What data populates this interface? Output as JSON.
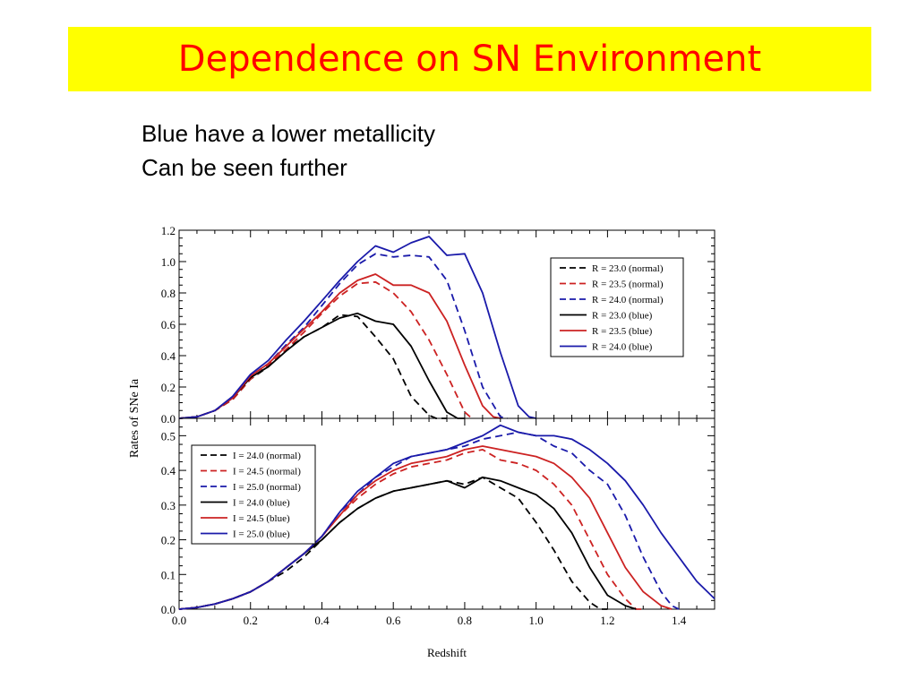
{
  "slide": {
    "title": "Dependence on SN Environment",
    "bullets": [
      "Blue have a lower metallicity",
      "Can be seen further"
    ]
  },
  "colors": {
    "title_bg": "#ffff00",
    "title_text": "#ff0000",
    "series_black": "#000000",
    "series_red": "#cc2222",
    "series_blue": "#1a1aaa"
  },
  "chart_data": [
    {
      "type": "line",
      "panel": "top",
      "xlabel": "",
      "ylabel": "Rates of SNe Ia",
      "xlim": [
        0.0,
        1.5
      ],
      "ylim": [
        0.0,
        1.2
      ],
      "yticks": [
        "0.0",
        "0.2",
        "0.4",
        "0.6",
        "0.8",
        "1.0",
        "1.2"
      ],
      "legend_position": "top-right",
      "series": [
        {
          "name": "R = 23.0 (normal)",
          "color": "#000000",
          "dash": true,
          "x": [
            0,
            0.05,
            0.1,
            0.15,
            0.2,
            0.25,
            0.3,
            0.35,
            0.4,
            0.45,
            0.5,
            0.55,
            0.6,
            0.65,
            0.7,
            0.72,
            0.75
          ],
          "y": [
            0,
            0.01,
            0.05,
            0.12,
            0.25,
            0.33,
            0.44,
            0.52,
            0.58,
            0.66,
            0.65,
            0.52,
            0.38,
            0.14,
            0.02,
            0,
            0
          ]
        },
        {
          "name": "R = 23.5 (normal)",
          "color": "#cc2222",
          "dash": true,
          "x": [
            0,
            0.05,
            0.1,
            0.15,
            0.2,
            0.25,
            0.3,
            0.35,
            0.4,
            0.45,
            0.5,
            0.55,
            0.6,
            0.65,
            0.7,
            0.75,
            0.8,
            0.82
          ],
          "y": [
            0,
            0.01,
            0.05,
            0.12,
            0.25,
            0.34,
            0.44,
            0.55,
            0.67,
            0.78,
            0.86,
            0.87,
            0.8,
            0.68,
            0.5,
            0.28,
            0.04,
            0
          ]
        },
        {
          "name": "R = 24.0 (normal)",
          "color": "#1a1aaa",
          "dash": true,
          "x": [
            0,
            0.05,
            0.1,
            0.15,
            0.2,
            0.25,
            0.3,
            0.35,
            0.4,
            0.45,
            0.5,
            0.55,
            0.6,
            0.65,
            0.7,
            0.75,
            0.8,
            0.85,
            0.9,
            0.92
          ],
          "y": [
            0,
            0.01,
            0.05,
            0.13,
            0.27,
            0.35,
            0.47,
            0.58,
            0.72,
            0.86,
            0.98,
            1.05,
            1.03,
            1.04,
            1.03,
            0.88,
            0.56,
            0.2,
            0.01,
            0
          ]
        },
        {
          "name": "R = 23.0 (blue)",
          "color": "#000000",
          "dash": false,
          "x": [
            0,
            0.05,
            0.1,
            0.15,
            0.2,
            0.25,
            0.3,
            0.35,
            0.4,
            0.45,
            0.5,
            0.55,
            0.6,
            0.65,
            0.7,
            0.75,
            0.78,
            0.8
          ],
          "y": [
            0,
            0.01,
            0.05,
            0.13,
            0.26,
            0.33,
            0.43,
            0.52,
            0.58,
            0.64,
            0.67,
            0.62,
            0.6,
            0.46,
            0.24,
            0.04,
            0,
            0
          ]
        },
        {
          "name": "R = 23.5 (blue)",
          "color": "#cc2222",
          "dash": false,
          "x": [
            0,
            0.05,
            0.1,
            0.15,
            0.2,
            0.25,
            0.3,
            0.35,
            0.4,
            0.45,
            0.5,
            0.55,
            0.6,
            0.65,
            0.7,
            0.75,
            0.8,
            0.85,
            0.88,
            0.9
          ],
          "y": [
            0,
            0.01,
            0.05,
            0.13,
            0.27,
            0.35,
            0.46,
            0.57,
            0.68,
            0.8,
            0.88,
            0.92,
            0.85,
            0.85,
            0.8,
            0.62,
            0.34,
            0.08,
            0.01,
            0
          ]
        },
        {
          "name": "R = 24.0 (blue)",
          "color": "#1a1aaa",
          "dash": false,
          "x": [
            0,
            0.05,
            0.1,
            0.15,
            0.2,
            0.25,
            0.3,
            0.35,
            0.4,
            0.45,
            0.5,
            0.55,
            0.6,
            0.65,
            0.7,
            0.75,
            0.8,
            0.85,
            0.9,
            0.95,
            0.98,
            1.0
          ],
          "y": [
            0,
            0.01,
            0.05,
            0.14,
            0.28,
            0.37,
            0.5,
            0.62,
            0.75,
            0.88,
            1.0,
            1.1,
            1.06,
            1.12,
            1.16,
            1.04,
            1.05,
            0.8,
            0.42,
            0.08,
            0.01,
            0
          ]
        }
      ]
    },
    {
      "type": "line",
      "panel": "bottom",
      "xlabel": "Redshift",
      "ylabel": "Rates of SNe Ia",
      "xlim": [
        0.0,
        1.5
      ],
      "ylim": [
        0.0,
        0.55
      ],
      "xticks": [
        "0.0",
        "0.2",
        "0.4",
        "0.6",
        "0.8",
        "1.0",
        "1.2",
        "1.4"
      ],
      "yticks": [
        "0.0",
        "0.1",
        "0.2",
        "0.3",
        "0.4",
        "0.5"
      ],
      "legend_position": "top-left",
      "series": [
        {
          "name": "I = 24.0 (normal)",
          "color": "#000000",
          "dash": true,
          "x": [
            0,
            0.05,
            0.1,
            0.15,
            0.2,
            0.25,
            0.3,
            0.35,
            0.4,
            0.45,
            0.5,
            0.55,
            0.6,
            0.65,
            0.7,
            0.75,
            0.8,
            0.85,
            0.9,
            0.95,
            1.0,
            1.05,
            1.1,
            1.15,
            1.18,
            1.2
          ],
          "y": [
            0,
            0.005,
            0.015,
            0.03,
            0.05,
            0.08,
            0.11,
            0.15,
            0.2,
            0.25,
            0.29,
            0.32,
            0.34,
            0.35,
            0.36,
            0.37,
            0.36,
            0.38,
            0.35,
            0.32,
            0.25,
            0.17,
            0.08,
            0.02,
            0,
            0
          ]
        },
        {
          "name": "I = 24.5 (normal)",
          "color": "#cc2222",
          "dash": true,
          "x": [
            0,
            0.05,
            0.1,
            0.15,
            0.2,
            0.25,
            0.3,
            0.35,
            0.4,
            0.45,
            0.5,
            0.55,
            0.6,
            0.65,
            0.7,
            0.75,
            0.8,
            0.85,
            0.9,
            0.95,
            1.0,
            1.05,
            1.1,
            1.15,
            1.2,
            1.25,
            1.28,
            1.3
          ],
          "y": [
            0,
            0.005,
            0.015,
            0.03,
            0.05,
            0.08,
            0.12,
            0.16,
            0.21,
            0.27,
            0.32,
            0.36,
            0.39,
            0.41,
            0.42,
            0.43,
            0.45,
            0.46,
            0.43,
            0.42,
            0.4,
            0.36,
            0.3,
            0.2,
            0.1,
            0.03,
            0,
            0
          ]
        },
        {
          "name": "I = 25.0 (normal)",
          "color": "#1a1aaa",
          "dash": true,
          "x": [
            0,
            0.05,
            0.1,
            0.15,
            0.2,
            0.25,
            0.3,
            0.35,
            0.4,
            0.45,
            0.5,
            0.55,
            0.6,
            0.65,
            0.7,
            0.75,
            0.8,
            0.85,
            0.9,
            0.95,
            1.0,
            1.05,
            1.1,
            1.15,
            1.2,
            1.25,
            1.3,
            1.35,
            1.38,
            1.4
          ],
          "y": [
            0,
            0.005,
            0.015,
            0.03,
            0.05,
            0.08,
            0.12,
            0.16,
            0.21,
            0.28,
            0.33,
            0.38,
            0.41,
            0.44,
            0.45,
            0.46,
            0.47,
            0.49,
            0.5,
            0.51,
            0.5,
            0.47,
            0.45,
            0.4,
            0.36,
            0.27,
            0.15,
            0.05,
            0.01,
            0
          ]
        },
        {
          "name": "I = 24.0 (blue)",
          "color": "#000000",
          "dash": false,
          "x": [
            0,
            0.05,
            0.1,
            0.15,
            0.2,
            0.25,
            0.3,
            0.35,
            0.4,
            0.45,
            0.5,
            0.55,
            0.6,
            0.65,
            0.7,
            0.75,
            0.8,
            0.85,
            0.9,
            0.95,
            1.0,
            1.05,
            1.1,
            1.15,
            1.2,
            1.25,
            1.28
          ],
          "y": [
            0,
            0.005,
            0.015,
            0.03,
            0.05,
            0.08,
            0.12,
            0.16,
            0.2,
            0.25,
            0.29,
            0.32,
            0.34,
            0.35,
            0.36,
            0.37,
            0.35,
            0.38,
            0.37,
            0.35,
            0.33,
            0.29,
            0.22,
            0.12,
            0.04,
            0.01,
            0
          ]
        },
        {
          "name": "I = 24.5 (blue)",
          "color": "#cc2222",
          "dash": false,
          "x": [
            0,
            0.05,
            0.1,
            0.15,
            0.2,
            0.25,
            0.3,
            0.35,
            0.4,
            0.45,
            0.5,
            0.55,
            0.6,
            0.65,
            0.7,
            0.75,
            0.8,
            0.85,
            0.9,
            0.95,
            1.0,
            1.05,
            1.1,
            1.15,
            1.2,
            1.25,
            1.3,
            1.35,
            1.38
          ],
          "y": [
            0,
            0.005,
            0.015,
            0.03,
            0.05,
            0.08,
            0.12,
            0.16,
            0.21,
            0.27,
            0.33,
            0.37,
            0.4,
            0.42,
            0.43,
            0.44,
            0.46,
            0.47,
            0.46,
            0.45,
            0.44,
            0.42,
            0.38,
            0.32,
            0.22,
            0.12,
            0.05,
            0.01,
            0
          ]
        },
        {
          "name": "I = 25.0 (blue)",
          "color": "#1a1aaa",
          "dash": false,
          "x": [
            0,
            0.05,
            0.1,
            0.15,
            0.2,
            0.25,
            0.3,
            0.35,
            0.4,
            0.45,
            0.5,
            0.55,
            0.6,
            0.65,
            0.7,
            0.75,
            0.8,
            0.85,
            0.9,
            0.95,
            1.0,
            1.05,
            1.1,
            1.15,
            1.2,
            1.25,
            1.3,
            1.35,
            1.4,
            1.45,
            1.5
          ],
          "y": [
            0,
            0.005,
            0.015,
            0.03,
            0.05,
            0.08,
            0.12,
            0.16,
            0.21,
            0.28,
            0.34,
            0.38,
            0.42,
            0.44,
            0.45,
            0.46,
            0.48,
            0.5,
            0.53,
            0.51,
            0.5,
            0.5,
            0.49,
            0.46,
            0.42,
            0.37,
            0.3,
            0.22,
            0.15,
            0.08,
            0.03
          ]
        }
      ]
    }
  ]
}
